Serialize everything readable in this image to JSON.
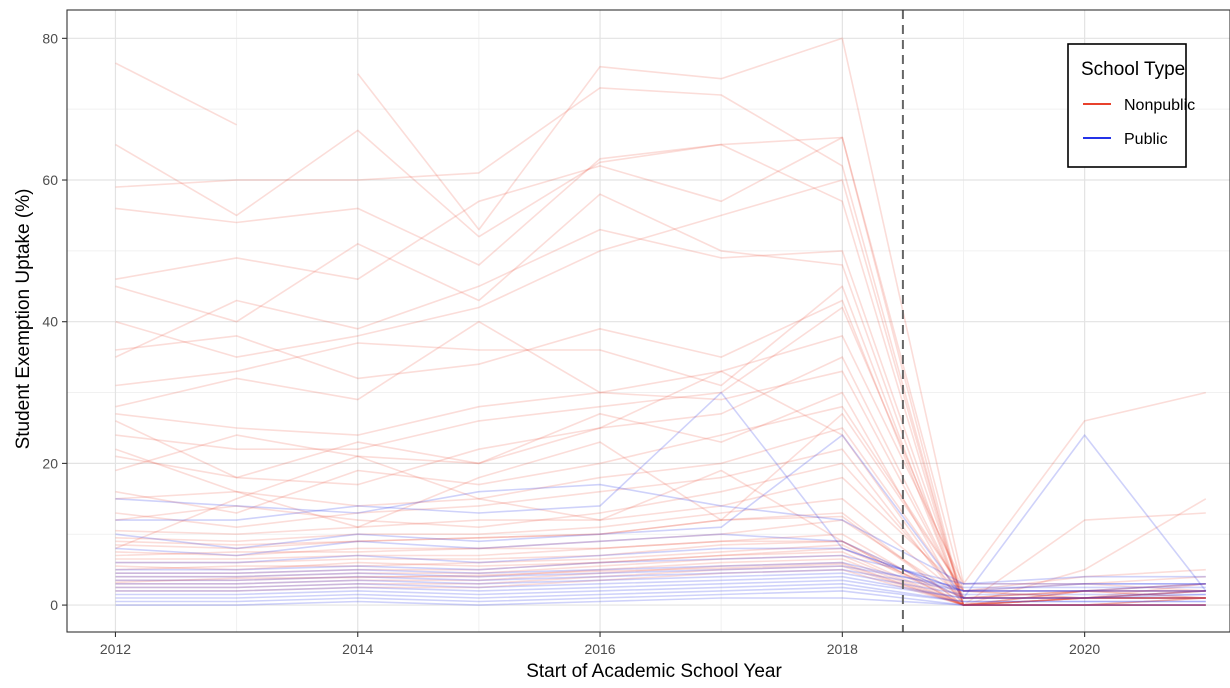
{
  "chart_data": {
    "type": "line",
    "title": "",
    "xlabel": "Start of Academic School Year",
    "ylabel": "Student Exemption Uptake (%)",
    "x": [
      2012,
      2013,
      2014,
      2015,
      2016,
      2017,
      2018,
      2019,
      2020,
      2021
    ],
    "xlim": [
      2011.6,
      2021.2
    ],
    "ylim": [
      -3.8,
      84
    ],
    "x_ticks": [
      2012,
      2014,
      2016,
      2018,
      2020
    ],
    "y_ticks": [
      0,
      20,
      40,
      60,
      80
    ],
    "grid": true,
    "legend": {
      "title": "School Type",
      "position": "top-right",
      "entries": [
        {
          "label": "Nonpublic",
          "color": "#e8412c"
        },
        {
          "label": "Public",
          "color": "#2433e8"
        }
      ]
    },
    "reference_line": {
      "x": 2018.5,
      "style": "dashed",
      "color": "#666666"
    },
    "series": [
      {
        "group": "Nonpublic",
        "values": [
          76.5,
          67.8,
          null,
          null,
          null,
          null,
          null,
          null,
          null,
          null
        ]
      },
      {
        "group": "Nonpublic",
        "values": [
          68.3,
          null,
          75.0,
          53.0,
          76.0,
          74.3,
          80.0,
          3.0,
          26.0,
          30.0
        ]
      },
      {
        "group": "Nonpublic",
        "values": [
          65.0,
          55.0,
          67.0,
          52.0,
          62.5,
          65.0,
          66.0,
          0.0,
          5.0,
          15.0
        ]
      },
      {
        "group": "Nonpublic",
        "values": [
          59.0,
          60.0,
          60.0,
          61.0,
          73.0,
          72.0,
          62.0,
          0.0,
          2.0,
          3.0
        ]
      },
      {
        "group": "Nonpublic",
        "values": [
          56.0,
          54.0,
          56.0,
          48.0,
          63.0,
          65.0,
          57.0,
          0.0,
          1.0,
          2.0
        ]
      },
      {
        "group": "Nonpublic",
        "values": [
          46.0,
          49.0,
          46.0,
          57.0,
          62.0,
          57.0,
          66.0,
          2.0,
          4.0,
          5.0
        ]
      },
      {
        "group": "Nonpublic",
        "values": [
          45.0,
          40.0,
          51.0,
          43.0,
          58.0,
          50.0,
          48.0,
          0.0,
          0.0,
          1.0
        ]
      },
      {
        "group": "Nonpublic",
        "values": [
          40.0,
          35.0,
          38.0,
          42.0,
          50.0,
          55.0,
          60.0,
          0.0,
          12.0,
          13.0
        ]
      },
      {
        "group": "Nonpublic",
        "values": [
          35.0,
          43.0,
          39.0,
          45.0,
          53.0,
          49.0,
          50.0,
          1.0,
          2.0,
          2.0
        ]
      },
      {
        "group": "Nonpublic",
        "values": [
          31.0,
          33.0,
          37.0,
          36.0,
          36.0,
          31.0,
          45.0,
          0.0,
          0.0,
          0.0
        ]
      },
      {
        "group": "Nonpublic",
        "values": [
          27.0,
          25.0,
          24.0,
          28.0,
          30.0,
          33.0,
          38.0,
          3.0,
          3.0,
          4.0
        ]
      },
      {
        "group": "Nonpublic",
        "values": [
          24.0,
          22.0,
          22.0,
          26.0,
          28.0,
          30.0,
          42.0,
          2.0,
          1.0,
          3.0
        ]
      },
      {
        "group": "Nonpublic",
        "values": [
          21.0,
          18.0,
          17.0,
          22.0,
          25.0,
          27.0,
          35.0,
          1.0,
          2.0,
          2.0
        ]
      },
      {
        "group": "Nonpublic",
        "values": [
          19.0,
          24.0,
          21.0,
          20.0,
          27.0,
          23.0,
          30.0,
          0.0,
          1.0,
          1.0
        ]
      },
      {
        "group": "Nonpublic",
        "values": [
          16.0,
          13.0,
          19.0,
          17.0,
          20.0,
          24.0,
          28.0,
          2.0,
          2.0,
          3.0
        ]
      },
      {
        "group": "Nonpublic",
        "values": [
          15.0,
          16.0,
          14.0,
          15.0,
          18.0,
          20.0,
          25.0,
          1.0,
          1.0,
          2.0
        ]
      },
      {
        "group": "Nonpublic",
        "values": [
          13.0,
          11.0,
          13.0,
          14.0,
          16.0,
          18.0,
          22.0,
          0.0,
          1.0,
          1.0
        ]
      },
      {
        "group": "Nonpublic",
        "values": [
          12.0,
          14.0,
          12.0,
          11.0,
          13.0,
          16.0,
          20.0,
          1.0,
          2.0,
          2.0
        ]
      },
      {
        "group": "Nonpublic",
        "values": [
          10.5,
          10.0,
          11.0,
          12.0,
          12.0,
          14.0,
          18.0,
          2.0,
          3.0,
          2.0
        ]
      },
      {
        "group": "Nonpublic",
        "values": [
          9.5,
          9.0,
          10.0,
          10.0,
          11.0,
          13.0,
          15.0,
          1.0,
          1.0,
          1.0
        ]
      },
      {
        "group": "Nonpublic",
        "values": [
          8.5,
          8.0,
          9.0,
          9.5,
          10.0,
          12.0,
          13.0,
          0.0,
          1.0,
          2.0
        ]
      },
      {
        "group": "Nonpublic",
        "values": [
          7.5,
          7.0,
          8.0,
          8.0,
          9.0,
          10.0,
          12.0,
          1.0,
          1.0,
          1.0
        ]
      },
      {
        "group": "Nonpublic",
        "values": [
          6.5,
          6.5,
          7.0,
          7.0,
          8.0,
          9.0,
          10.0,
          0.0,
          0.0,
          1.0
        ]
      },
      {
        "group": "Nonpublic",
        "values": [
          6.0,
          6.0,
          6.5,
          6.5,
          7.0,
          8.5,
          9.0,
          0.0,
          1.0,
          1.0
        ]
      },
      {
        "group": "Nonpublic",
        "values": [
          5.0,
          5.5,
          5.5,
          6.0,
          6.5,
          7.5,
          8.5,
          0.0,
          0.0,
          0.0
        ]
      },
      {
        "group": "Nonpublic",
        "values": [
          4.5,
          4.5,
          5.0,
          5.0,
          6.0,
          7.0,
          8.0,
          1.0,
          1.0,
          1.0
        ]
      },
      {
        "group": "Nonpublic",
        "values": [
          4.0,
          4.0,
          4.5,
          4.5,
          5.5,
          6.5,
          7.0,
          0.0,
          1.0,
          1.0
        ]
      },
      {
        "group": "Nonpublic",
        "values": [
          3.5,
          3.5,
          4.0,
          4.0,
          5.0,
          6.0,
          6.5,
          0.0,
          0.0,
          0.0
        ]
      },
      {
        "group": "Nonpublic",
        "values": [
          3.0,
          3.0,
          3.5,
          3.5,
          4.5,
          5.5,
          6.0,
          0.0,
          0.0,
          1.0
        ]
      },
      {
        "group": "Nonpublic",
        "values": [
          2.5,
          2.5,
          3.0,
          3.0,
          4.0,
          5.0,
          5.5,
          0.0,
          0.0,
          0.0
        ]
      },
      {
        "group": "Nonpublic",
        "values": [
          2.0,
          2.0,
          2.5,
          2.5,
          3.5,
          4.5,
          5.0,
          0.0,
          0.0,
          0.0
        ]
      },
      {
        "group": "Nonpublic",
        "values": [
          26.0,
          18.0,
          23.0,
          20.0,
          25.0,
          33.0,
          24.0,
          0.0,
          1.0,
          1.0
        ]
      },
      {
        "group": "Nonpublic",
        "values": [
          28.0,
          32.0,
          29.0,
          40.0,
          30.0,
          29.0,
          33.0,
          1.0,
          1.0,
          2.0
        ]
      },
      {
        "group": "Nonpublic",
        "values": [
          36.0,
          38.0,
          32.0,
          34.0,
          39.0,
          35.0,
          43.0,
          0.0,
          2.0,
          1.0
        ]
      },
      {
        "group": "Nonpublic",
        "values": [
          8.0,
          15.0,
          21.0,
          15.0,
          12.0,
          19.0,
          9.0,
          0.0,
          0.0,
          0.0
        ]
      },
      {
        "group": "Nonpublic",
        "values": [
          22.0,
          16.0,
          11.0,
          18.0,
          23.0,
          12.0,
          27.0,
          2.0,
          1.0,
          1.0
        ]
      },
      {
        "group": "Nonpublic",
        "values": [
          9.0,
          8.5,
          9.0,
          9.5,
          10.0,
          12.0,
          12.5,
          0.0,
          2.0,
          1.0
        ]
      },
      {
        "group": "Nonpublic",
        "values": [
          7.0,
          7.5,
          7.5,
          8.0,
          8.0,
          9.0,
          9.0,
          1.0,
          1.0,
          1.0
        ]
      },
      {
        "group": "Nonpublic",
        "values": [
          5.5,
          5.0,
          6.0,
          5.5,
          6.0,
          7.0,
          7.5,
          0.0,
          0.0,
          0.0
        ]
      },
      {
        "group": "Nonpublic",
        "values": [
          3.2,
          3.8,
          3.9,
          4.2,
          4.8,
          5.2,
          5.8,
          0.0,
          0.0,
          0.0
        ]
      },
      {
        "group": "Public",
        "values": [
          15.0,
          14.0,
          13.0,
          16.0,
          17.0,
          14.0,
          12.0,
          3.0,
          4.0,
          4.0
        ]
      },
      {
        "group": "Public",
        "values": [
          12.0,
          12.0,
          14.0,
          13.0,
          14.0,
          30.0,
          8.0,
          2.0,
          3.0,
          3.0
        ]
      },
      {
        "group": "Public",
        "values": [
          10.0,
          8.0,
          10.0,
          9.0,
          10.0,
          11.0,
          24.0,
          1.0,
          24.0,
          2.0
        ]
      },
      {
        "group": "Public",
        "values": [
          8.0,
          7.0,
          9.0,
          8.0,
          9.0,
          10.0,
          9.0,
          1.0,
          1.0,
          2.0
        ]
      },
      {
        "group": "Public",
        "values": [
          6.0,
          6.0,
          7.0,
          6.0,
          7.0,
          8.0,
          8.0,
          2.0,
          2.0,
          3.0
        ]
      },
      {
        "group": "Public",
        "values": [
          5.0,
          5.0,
          5.5,
          5.0,
          6.0,
          6.5,
          7.0,
          3.0,
          3.0,
          3.0
        ]
      },
      {
        "group": "Public",
        "values": [
          4.5,
          4.5,
          5.0,
          4.5,
          5.0,
          5.5,
          6.0,
          2.0,
          2.0,
          2.0
        ]
      },
      {
        "group": "Public",
        "values": [
          4.0,
          4.0,
          4.5,
          4.0,
          4.5,
          5.0,
          5.5,
          2.5,
          2.5,
          2.5
        ]
      },
      {
        "group": "Public",
        "values": [
          3.5,
          3.5,
          4.0,
          3.5,
          4.0,
          4.5,
          5.0,
          2.0,
          2.0,
          2.0
        ]
      },
      {
        "group": "Public",
        "values": [
          3.0,
          3.0,
          3.5,
          3.0,
          3.5,
          4.0,
          4.5,
          1.5,
          1.5,
          1.5
        ]
      },
      {
        "group": "Public",
        "values": [
          2.5,
          2.5,
          3.0,
          2.5,
          3.0,
          3.5,
          4.0,
          1.0,
          1.0,
          1.5
        ]
      },
      {
        "group": "Public",
        "values": [
          2.0,
          2.0,
          2.5,
          2.0,
          2.5,
          3.0,
          3.5,
          1.0,
          1.0,
          1.0
        ]
      },
      {
        "group": "Public",
        "values": [
          1.5,
          1.5,
          2.0,
          1.5,
          2.0,
          2.5,
          3.0,
          0.5,
          0.5,
          0.5
        ]
      },
      {
        "group": "Public",
        "values": [
          1.0,
          1.0,
          1.5,
          1.0,
          1.5,
          2.0,
          2.5,
          0.5,
          0.5,
          0.5
        ]
      },
      {
        "group": "Public",
        "values": [
          0.5,
          0.5,
          1.0,
          0.5,
          1.0,
          1.5,
          2.0,
          0.0,
          0.0,
          0.0
        ]
      },
      {
        "group": "Public",
        "values": [
          0.0,
          0.0,
          0.5,
          0.0,
          0.5,
          1.0,
          1.0,
          0.0,
          0.0,
          0.0
        ]
      }
    ]
  }
}
